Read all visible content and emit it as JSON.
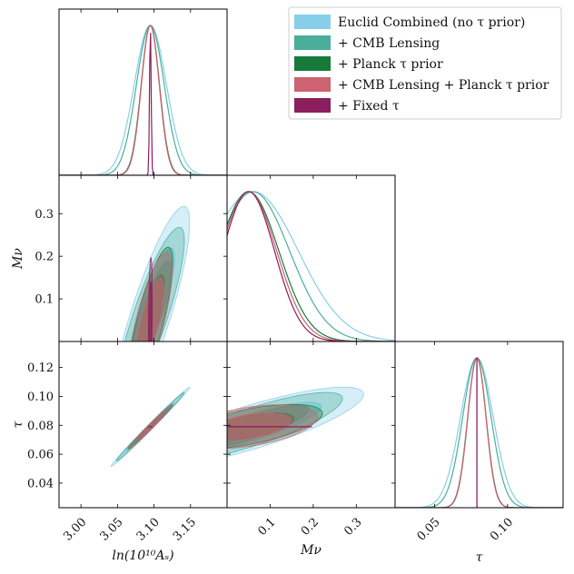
{
  "chart_data": {
    "type": "triangle-corner",
    "title": "",
    "params": [
      {
        "key": "lnAs",
        "label": "ln(10¹⁰Aₛ)",
        "range": [
          2.97,
          3.2
        ],
        "ticks": [
          3.0,
          3.05,
          3.1,
          3.15
        ],
        "tick_labels": [
          "3.00",
          "3.05",
          "3.10",
          "3.15"
        ]
      },
      {
        "key": "mnu",
        "label": "Mν",
        "range": [
          0.0,
          0.39
        ],
        "ticks": [
          0.1,
          0.2,
          0.3
        ],
        "tick_labels": [
          "0.1",
          "0.2",
          "0.3"
        ]
      },
      {
        "key": "tau",
        "label": "τ",
        "range": [
          0.023,
          0.138
        ],
        "ticks": [
          0.04,
          0.06,
          0.08,
          0.1,
          0.12
        ],
        "tick_labels": [
          "0.04",
          "0.06",
          "0.08",
          "0.10",
          "0.12"
        ],
        "diag_ticks": [
          0.05,
          0.1
        ],
        "diag_tick_labels": [
          "0.05",
          "0.10"
        ]
      }
    ],
    "legend": {
      "position": "top-right",
      "entries": [
        {
          "label": "Euclid Combined (no τ prior)",
          "color": "#87ceeb"
        },
        {
          "label": "+ CMB Lensing",
          "color": "#4bae9a"
        },
        {
          "label": "+ Planck τ prior",
          "color": "#177a3a"
        },
        {
          "label": "+ CMB Lensing + Planck τ prior",
          "color": "#cd6270"
        },
        {
          "label": "+ Fixed τ",
          "color": "#8b1e5c"
        }
      ]
    },
    "series": [
      {
        "name": "Euclid Combined (no τ prior)",
        "color": "#87ceeb",
        "fill_alpha": [
          0.35,
          0.55
        ],
        "mean": {
          "lnAs": 3.095,
          "mnu": 0.06,
          "tau": 0.079
        },
        "sigma": {
          "lnAs": 0.022,
          "mnu": 0.105,
          "tau": 0.0112
        },
        "corr": {
          "lnAs_mnu": 0.85,
          "lnAs_tau": 0.995,
          "mnu_tau": 0.82
        }
      },
      {
        "name": "+ CMB Lensing",
        "color": "#4bae9a",
        "fill_alpha": [
          0.35,
          0.55
        ],
        "mean": {
          "lnAs": 3.095,
          "mnu": 0.06,
          "tau": 0.079
        },
        "sigma": {
          "lnAs": 0.019,
          "mnu": 0.085,
          "tau": 0.0097
        },
        "corr": {
          "lnAs_mnu": 0.85,
          "lnAs_tau": 0.995,
          "mnu_tau": 0.82
        }
      },
      {
        "name": "+ Planck τ prior",
        "color": "#177a3a",
        "fill_alpha": [
          0.35,
          0.55
        ],
        "mean": {
          "lnAs": 3.095,
          "mnu": 0.05,
          "tau": 0.079
        },
        "sigma": {
          "lnAs": 0.0125,
          "mnu": 0.07,
          "tau": 0.0063
        },
        "corr": {
          "lnAs_mnu": 0.8,
          "lnAs_tau": 0.99,
          "mnu_tau": 0.6
        }
      },
      {
        "name": "+ CMB Lensing + Planck τ prior",
        "color": "#cd6270",
        "fill_alpha": [
          0.35,
          0.55
        ],
        "mean": {
          "lnAs": 3.095,
          "mnu": 0.05,
          "tau": 0.079
        },
        "sigma": {
          "lnAs": 0.0122,
          "mnu": 0.065,
          "tau": 0.0062
        },
        "corr": {
          "lnAs_mnu": 0.75,
          "lnAs_tau": 0.99,
          "mnu_tau": 0.45
        }
      },
      {
        "name": "+ Fixed τ",
        "color": "#8b1e5c",
        "fill_alpha": [
          0.35,
          0.55
        ],
        "mean": {
          "lnAs": 3.095,
          "mnu": 0.05,
          "tau": 0.079
        },
        "sigma": {
          "lnAs": 0.0011,
          "mnu": 0.06,
          "tau": 0.0
        },
        "corr": {
          "lnAs_mnu": 0.3,
          "lnAs_tau": 0.0,
          "mnu_tau": 0.0
        }
      }
    ]
  }
}
